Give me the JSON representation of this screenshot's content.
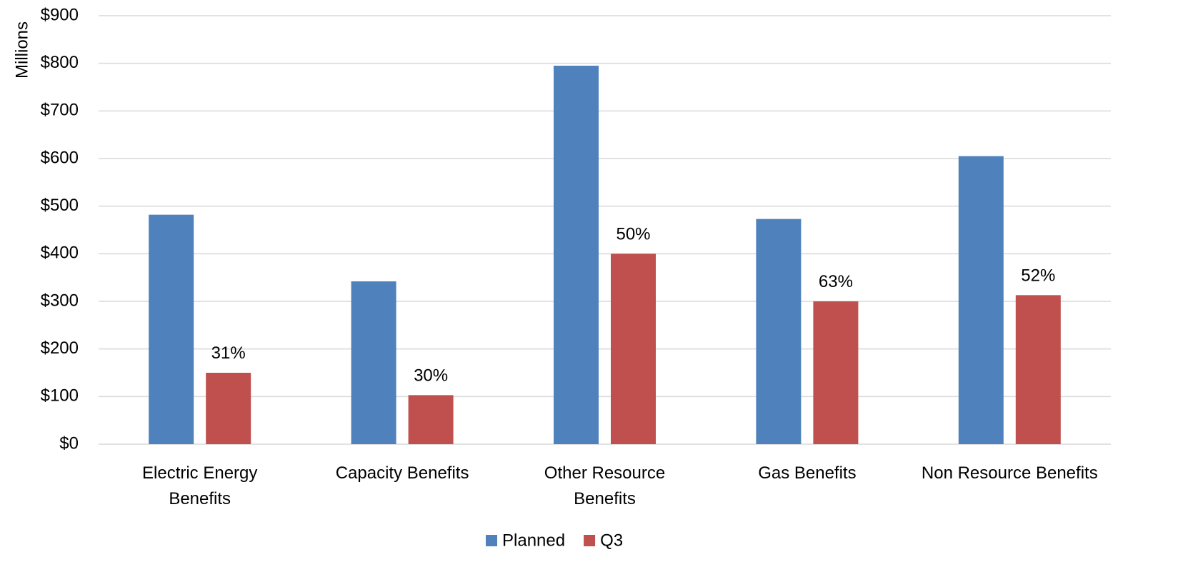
{
  "chart_data": {
    "type": "bar",
    "ylabel": "Millions",
    "ylim": [
      0,
      900
    ],
    "yticks": [
      "$0",
      "$100",
      "$200",
      "$300",
      "$400",
      "$500",
      "$600",
      "$700",
      "$800",
      "$900"
    ],
    "ytick_values": [
      0,
      100,
      200,
      300,
      400,
      500,
      600,
      700,
      800,
      900
    ],
    "grid": true,
    "legend_position": "bottom",
    "categories": [
      [
        "Electric Energy",
        "Benefits"
      ],
      [
        "Capacity Benefits"
      ],
      [
        "Other Resource",
        "Benefits"
      ],
      [
        "Gas Benefits"
      ],
      [
        "Non Resource Benefits"
      ]
    ],
    "series": [
      {
        "name": "Planned",
        "color": "#4F81BD",
        "values": [
          482,
          342,
          795,
          473,
          605
        ]
      },
      {
        "name": "Q3",
        "color": "#C0504D",
        "values": [
          150,
          103,
          400,
          300,
          313
        ],
        "data_labels": [
          "31%",
          "30%",
          "50%",
          "63%",
          "52%"
        ]
      }
    ]
  }
}
